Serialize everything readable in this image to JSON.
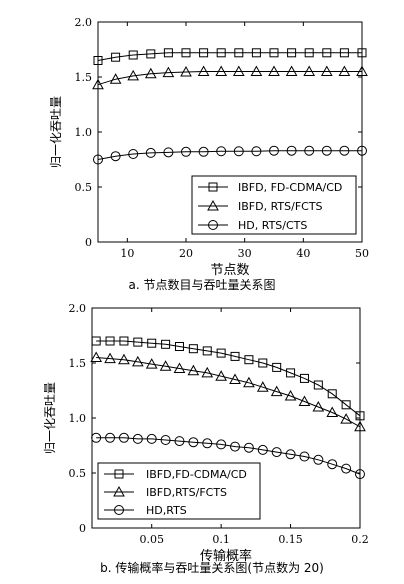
{
  "chart_data": [
    {
      "type": "line",
      "caption": "a.  节点数目与吞吐量关系图",
      "xlabel": "节点数",
      "ylabel": "归一化吞吐量",
      "xlim": [
        5,
        50
      ],
      "ylim": [
        0,
        2
      ],
      "xticks": [
        "10",
        "20",
        "30",
        "40",
        "50"
      ],
      "yticks": [
        "0",
        "0.5",
        "1.0",
        "1.5",
        "2.0"
      ],
      "grid": false,
      "legend_position": "bottom-right",
      "x": [
        5,
        8,
        11,
        14,
        17,
        20,
        23,
        26,
        29,
        32,
        35,
        38,
        41,
        44,
        47,
        50
      ],
      "series": [
        {
          "name": "IBFD, FD-CDMA/CD",
          "marker": "square",
          "values": [
            1.65,
            1.68,
            1.7,
            1.71,
            1.72,
            1.72,
            1.72,
            1.72,
            1.72,
            1.72,
            1.72,
            1.72,
            1.72,
            1.72,
            1.72,
            1.72
          ]
        },
        {
          "name": "IBFD, RTS/FCTS",
          "marker": "triangle",
          "values": [
            1.43,
            1.48,
            1.51,
            1.53,
            1.54,
            1.545,
            1.55,
            1.55,
            1.55,
            1.55,
            1.55,
            1.55,
            1.55,
            1.55,
            1.55,
            1.55
          ]
        },
        {
          "name": "HD, RTS/CTS",
          "marker": "circle",
          "values": [
            0.75,
            0.78,
            0.8,
            0.81,
            0.815,
            0.82,
            0.82,
            0.825,
            0.825,
            0.825,
            0.83,
            0.83,
            0.83,
            0.83,
            0.83,
            0.83
          ]
        }
      ]
    },
    {
      "type": "line",
      "caption": "b.  传输概率与吞吐量关系图(节点数为 20)",
      "xlabel": "传输概率",
      "ylabel": "归一化吞吐量",
      "xlim": [
        0.007,
        0.2
      ],
      "ylim": [
        0,
        2
      ],
      "xticks": [
        "0.05",
        "0.1",
        "0.15",
        "0.2"
      ],
      "yticks": [
        "0",
        "0.5",
        "1.0",
        "1.5",
        "2.0"
      ],
      "grid": false,
      "legend_position": "bottom-left",
      "x": [
        0.01,
        0.02,
        0.03,
        0.04,
        0.05,
        0.06,
        0.07,
        0.08,
        0.09,
        0.1,
        0.11,
        0.12,
        0.13,
        0.14,
        0.15,
        0.16,
        0.17,
        0.18,
        0.19,
        0.2
      ],
      "series": [
        {
          "name": "IBFD,FD-CDMA/CD",
          "marker": "square",
          "values": [
            1.7,
            1.7,
            1.7,
            1.69,
            1.68,
            1.67,
            1.65,
            1.63,
            1.61,
            1.59,
            1.56,
            1.53,
            1.5,
            1.46,
            1.41,
            1.36,
            1.3,
            1.22,
            1.12,
            1.02
          ]
        },
        {
          "name": "IBFD,RTS/FCTS",
          "marker": "triangle",
          "values": [
            1.55,
            1.54,
            1.53,
            1.51,
            1.49,
            1.47,
            1.45,
            1.43,
            1.41,
            1.38,
            1.35,
            1.32,
            1.28,
            1.24,
            1.2,
            1.15,
            1.1,
            1.05,
            0.99,
            0.92
          ]
        },
        {
          "name": "HD,RTS",
          "marker": "circle",
          "values": [
            0.82,
            0.82,
            0.82,
            0.81,
            0.81,
            0.8,
            0.79,
            0.78,
            0.77,
            0.76,
            0.74,
            0.73,
            0.71,
            0.69,
            0.67,
            0.65,
            0.62,
            0.58,
            0.54,
            0.49
          ]
        }
      ]
    }
  ]
}
